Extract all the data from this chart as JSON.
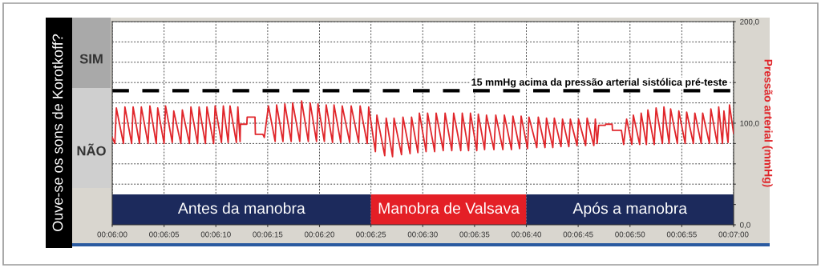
{
  "chart_data": {
    "type": "line",
    "ylabel": "Pressão arterial (mmHg)",
    "annotations": [
      "Ouve-se os sons de Korotkoff?",
      "SIM",
      "NÃO"
    ],
    "xlim": [
      0.1,
      0.11667
    ],
    "xticks": [
      {
        "value": 0.1,
        "label": "00:06:00"
      },
      {
        "value": 0.10139,
        "label": "00:06:05"
      },
      {
        "value": 0.10278,
        "label": "00:06:10"
      },
      {
        "value": 0.10417,
        "label": "00:06:15"
      },
      {
        "value": 0.10556,
        "label": "00:06:20"
      },
      {
        "value": 0.10694,
        "label": "00:06:25"
      },
      {
        "value": 0.10833,
        "label": "00:06:30"
      },
      {
        "value": 0.10972,
        "label": "00:06:35"
      },
      {
        "value": 0.11111,
        "label": "00:06:40"
      },
      {
        "value": 0.1125,
        "label": "00:06:45"
      },
      {
        "value": 0.11389,
        "label": "00:06:50"
      },
      {
        "value": 0.11528,
        "label": "00:06:55"
      },
      {
        "value": 0.11667,
        "label": "00:07:00"
      }
    ],
    "ylim": [
      0,
      200
    ],
    "yticks": [
      {
        "value": 0,
        "label": "0,0"
      },
      {
        "value": 20,
        "label": null
      },
      {
        "value": 40,
        "label": null
      },
      {
        "value": 60,
        "label": null
      },
      {
        "value": 80,
        "label": null
      },
      {
        "value": 100,
        "label": "100,0"
      },
      {
        "value": 120,
        "label": null
      },
      {
        "value": 140,
        "label": null
      },
      {
        "value": 160,
        "label": null
      },
      {
        "value": 180,
        "label": null
      },
      {
        "value": 200,
        "label": "200,0"
      }
    ],
    "grid": true,
    "ref_lines": [
      {
        "axis": "y",
        "value": 132,
        "label": "15 mmHg acima da pressão arterial sistólica pré-teste",
        "color": "#000000",
        "line_style": "dashed"
      }
    ],
    "bands": [
      {
        "axis": "x",
        "from": 0.1,
        "to": 0.10694,
        "label": "Antes da manobra",
        "color": "#1c2a5c"
      },
      {
        "axis": "x",
        "from": 0.10694,
        "to": 0.11111,
        "label": "Manobra de Valsava",
        "color": "#e41f26"
      },
      {
        "axis": "x",
        "from": 0.11111,
        "to": 0.11667,
        "label": "Após a manobra",
        "color": "#1c2a5c"
      }
    ],
    "series": [
      {
        "color": "#e0262b",
        "x": [
          0.1,
          0.10007,
          0.10011,
          0.1003,
          0.10034,
          0.10052,
          0.10056,
          0.10073,
          0.10078,
          0.10096,
          0.10101,
          0.10118,
          0.10122,
          0.10139,
          0.10143,
          0.10161,
          0.10165,
          0.10184,
          0.10188,
          0.10207,
          0.10211,
          0.10229,
          0.10233,
          0.1025,
          0.10254,
          0.10272,
          0.10276,
          0.10293,
          0.10298,
          0.10311,
          0.10316,
          0.10333,
          0.10337,
          0.10343,
          0.10344,
          0.10361,
          0.10362,
          0.10383,
          0.10384,
          0.10404,
          0.10408,
          0.10419,
          0.10437,
          0.10441,
          0.10458,
          0.10463,
          0.1048,
          0.10484,
          0.10503,
          0.10508,
          0.10526,
          0.10531,
          0.10548,
          0.10552,
          0.10569,
          0.10574,
          0.10591,
          0.10595,
          0.10613,
          0.10617,
          0.10637,
          0.10641,
          0.10661,
          0.10665,
          0.10684,
          0.10688,
          0.10706,
          0.1071,
          0.10731,
          0.10735,
          0.10752,
          0.10756,
          0.10776,
          0.1078,
          0.10799,
          0.10803,
          0.1082,
          0.10824,
          0.10842,
          0.10846,
          0.10865,
          0.10869,
          0.10888,
          0.10893,
          0.10911,
          0.10916,
          0.10935,
          0.10939,
          0.10956,
          0.10961,
          0.10978,
          0.10982,
          0.10999,
          0.11004,
          0.11024,
          0.11029,
          0.11048,
          0.11052,
          0.11071,
          0.11075,
          0.11093,
          0.11097,
          0.11114,
          0.11118,
          0.11139,
          0.11143,
          0.11161,
          0.11165,
          0.11182,
          0.11186,
          0.11204,
          0.11208,
          0.11225,
          0.11229,
          0.11247,
          0.11251,
          0.1127,
          0.11274,
          0.11292,
          0.11296,
          0.11301,
          0.11305,
          0.11323,
          0.11324,
          0.11341,
          0.11342,
          0.11366,
          0.11372,
          0.1138,
          0.11394,
          0.11398,
          0.11415,
          0.11419,
          0.11433,
          0.11437,
          0.11454,
          0.11459,
          0.11476,
          0.1148,
          0.11494,
          0.11498,
          0.11516,
          0.1152,
          0.11537,
          0.11541,
          0.11559,
          0.11563,
          0.1158,
          0.11584,
          0.11602,
          0.11606,
          0.11623,
          0.11627,
          0.11637,
          0.11641,
          0.11652,
          0.11656,
          0.11667
        ],
        "values": [
          86,
          80,
          115,
          80,
          116,
          80,
          116,
          80,
          116,
          80,
          117,
          80,
          115,
          80,
          117,
          81,
          112,
          80,
          113,
          80,
          116,
          80,
          116,
          80,
          116,
          80,
          117,
          81,
          117,
          81,
          117,
          81,
          116,
          82,
          99,
          99,
          106,
          106,
          89,
          89,
          86,
          117,
          82,
          118,
          82,
          119,
          82,
          120,
          82,
          122,
          82,
          120,
          82,
          119,
          82,
          118,
          81,
          118,
          81,
          117,
          81,
          117,
          81,
          117,
          80,
          116,
          72,
          108,
          68,
          105,
          67,
          105,
          69,
          106,
          70,
          106,
          71,
          110,
          72,
          110,
          72,
          110,
          73,
          110,
          73,
          110,
          73,
          110,
          73,
          110,
          73,
          109,
          74,
          108,
          74,
          108,
          74,
          108,
          74,
          107,
          75,
          107,
          75,
          106,
          76,
          106,
          76,
          105,
          76,
          105,
          77,
          104,
          77,
          104,
          78,
          104,
          78,
          105,
          78,
          104,
          80,
          98,
          98,
          99,
          99,
          93,
          93,
          79,
          104,
          79,
          108,
          79,
          110,
          79,
          113,
          79,
          115,
          80,
          116,
          80,
          114,
          80,
          112,
          80,
          111,
          80,
          110,
          80,
          110,
          80,
          114,
          80,
          116,
          80,
          112,
          81,
          118,
          90
        ]
      }
    ]
  }
}
